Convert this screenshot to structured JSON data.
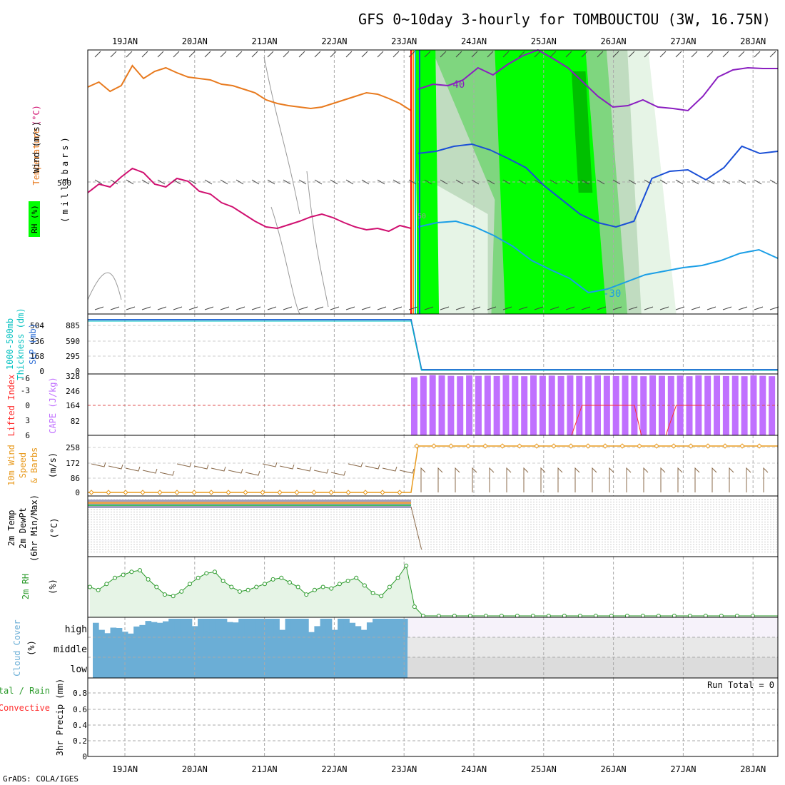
{
  "title": "GFS 0~10day 3-hourly for TOMBOUCTOU (3W, 16.75N)",
  "credit": "GrADS: COLA/IGES",
  "colors": {
    "temperature": "#e87a1e",
    "wind_label": "#000000",
    "rh_green": "#00ff00",
    "thickness": "#00c0c0",
    "slp": "#2f6fd6",
    "lifted_index": "#ff3030",
    "cape": "#c070ff",
    "wind10": "#e89a1e",
    "barb": "#8a6a4a",
    "rh2m": "#2a9a2a",
    "cloud": "#6baed6",
    "precip_total": "#2a9a2a",
    "precip_conv": "#ff3030"
  },
  "chart_data": [
    {
      "type": "line",
      "panel": "upper_air",
      "x_ticks": [
        "19JAN",
        "20JAN",
        "21JAN",
        "22JAN",
        "23JAN",
        "24JAN",
        "25JAN",
        "26JAN",
        "27JAN",
        "28JAN"
      ],
      "y_label_left": [
        "Temperature",
        "(°C)",
        "Wind (m/s)"
      ],
      "rh_label": "RH (%)",
      "y_label_right": "(millibars)",
      "y_ticks": [
        "500"
      ],
      "contour_labels": [
        "-40",
        "-30",
        "50"
      ],
      "series": [
        {
          "color": "temperature",
          "values": [
            122,
            115,
            128,
            120,
            92,
            110,
            100,
            95,
            102,
            108,
            110,
            112,
            118,
            120,
            125,
            130,
            140,
            145,
            148,
            150,
            152,
            150,
            145,
            140,
            135,
            130,
            132,
            138,
            145,
            155
          ],
          "x_end": 4.1
        },
        {
          "color": "magenta",
          "values": [
            270,
            258,
            262,
            248,
            236,
            242,
            258,
            262,
            250,
            254,
            268,
            272,
            284,
            290,
            300,
            310,
            318,
            320,
            315,
            310,
            304,
            300,
            305,
            312,
            318,
            322,
            320,
            324,
            316,
            320
          ],
          "x_end": 4.1
        }
      ],
      "contours_after": [
        {
          "color": "purple",
          "values": [
            125,
            118,
            120,
            112,
            95,
            105,
            90,
            78,
            70,
            82,
            95,
            115,
            135,
            150,
            148,
            140,
            150,
            152,
            155,
            135,
            108,
            98,
            95,
            96,
            96
          ]
        },
        {
          "color": "blue",
          "values": [
            215,
            212,
            205,
            202,
            210,
            222,
            235,
            260,
            280,
            300,
            312,
            318,
            310,
            250,
            240,
            238,
            252,
            235,
            205,
            215,
            212
          ]
        },
        {
          "color": "lightblue",
          "values": [
            318,
            312,
            310,
            318,
            330,
            345,
            365,
            378,
            390,
            410,
            405,
            395,
            385,
            380,
            375,
            372,
            365,
            355,
            350,
            362
          ]
        }
      ]
    },
    {
      "type": "line",
      "panel": "thickness_slp",
      "y_label_left": [
        "1000-500mb",
        "Thickness (dm)"
      ],
      "y_label_right": [
        "SLP (mb)"
      ],
      "y_ticks_left": [
        "504",
        "336",
        "168",
        "0"
      ],
      "y_ticks_right": [
        "885",
        "590",
        "295",
        "0"
      ],
      "values_before": 885,
      "values_after": 0,
      "x_drop": 4.1
    },
    {
      "type": "bar",
      "panel": "cape_li",
      "y_label_left": [
        "Lifted Index"
      ],
      "y_label_right": [
        "CAPE (J/kg)"
      ],
      "y_ticks_left": [
        "-6",
        "-3",
        "0",
        "3",
        "6"
      ],
      "y_ticks_right": [
        "328",
        "246",
        "164",
        "82"
      ],
      "cape_values": [
        310,
        318,
        322,
        320,
        318,
        316,
        320,
        318,
        319,
        317,
        321,
        318,
        316,
        320,
        318,
        319,
        317,
        320,
        318,
        316,
        320,
        318,
        317,
        319,
        318,
        316,
        320,
        318,
        317,
        319,
        316,
        320,
        318,
        319,
        317,
        318,
        316,
        320,
        318,
        316
      ],
      "cape_start_x": 4.1,
      "li_segments": [
        {
          "x": [
            5.75,
            5.9
          ],
          "y": [
            6,
            6
          ]
        },
        {
          "x": [
            6.4,
            6.55,
            6.7,
            6.85,
            7.0,
            7.15,
            7.3,
            7.4,
            7.55
          ],
          "y": [
            6,
            0,
            0,
            0,
            0,
            0,
            0,
            6,
            6
          ]
        },
        {
          "x": [
            7.75,
            7.9,
            8.05,
            8.2,
            8.3
          ],
          "y": [
            6,
            0,
            0,
            0,
            0
          ]
        }
      ]
    },
    {
      "type": "line",
      "panel": "wind10m",
      "y_label_left": [
        "10m Wind",
        "Speed",
        "& Barbs"
      ],
      "y_label_right": [
        "(m/s)"
      ],
      "y_ticks": [
        "258",
        "172",
        "86",
        "0"
      ],
      "values_before": 0,
      "values_after": 258,
      "x_jump": 4.2
    },
    {
      "type": "line",
      "panel": "temp2m",
      "y_label_left": [
        "2m Temp",
        "2m DewPt",
        "(6hr Min/Max)"
      ],
      "y_label_right": [
        "(°C)"
      ],
      "y_tick_count": 22
    },
    {
      "type": "area",
      "panel": "rh2m",
      "y_label_left": [
        "2m RH"
      ],
      "y_label_right": [
        "(%)"
      ],
      "values": [
        40,
        36,
        44,
        52,
        56,
        60,
        62,
        50,
        40,
        30,
        28,
        34,
        44,
        52,
        58,
        60,
        48,
        40,
        34,
        36,
        40,
        44,
        50,
        52,
        46,
        40,
        30,
        36,
        40,
        38,
        44,
        48,
        52,
        42,
        32,
        28,
        40,
        52,
        68,
        14
      ],
      "x_end": 4.15
    },
    {
      "type": "bar",
      "panel": "cloud",
      "y_label_left": [
        "Cloud Cover"
      ],
      "y_label_right": [
        "(%)"
      ],
      "levels": [
        "high",
        "middle",
        "low"
      ],
      "high_cover_top": [
        0.22,
        0.6,
        0.78,
        0.48,
        0.5,
        0.7,
        0.8,
        0.42,
        0.34,
        0.12,
        0.18,
        0.22,
        0.14,
        0.0,
        0.0,
        0.0,
        0.0,
        0.4,
        0.0,
        0.0,
        0.0,
        0.0,
        0.0,
        0.18,
        0.2,
        0.0,
        0.0,
        0.0,
        0.0,
        0.0,
        0.0,
        0.0,
        0.6,
        0.0,
        0.0,
        0.0,
        0.0,
        0.72,
        0.4,
        0.0,
        0.0,
        0.6,
        0.0,
        0.0,
        0.22,
        0.4,
        0.6,
        0.2,
        0.0,
        0.0,
        0.0,
        0.0,
        0.0,
        0.0
      ],
      "x_end": 4.05
    },
    {
      "type": "line",
      "panel": "precip",
      "y_label_left": [
        "Total / Rain",
        "Convective"
      ],
      "y_label_right": [
        "3hr Precip (mm)"
      ],
      "run_total": "Run Total = 0",
      "y_ticks": [
        "0.8",
        "0.6",
        "0.4",
        "0.2",
        "0"
      ],
      "values": []
    }
  ]
}
